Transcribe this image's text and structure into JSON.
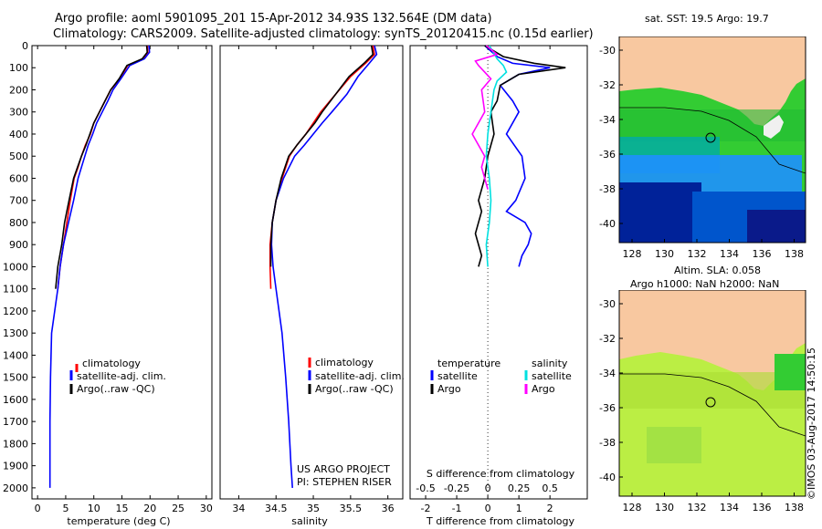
{
  "header": {
    "title_line1": "Argo profile: aoml 5901095_201 15-Apr-2012 34.93S 132.564E (DM data)",
    "title_line2": "Climatology: CARS2009. Satellite-adjusted climatology: synTS_20120415.nc (0.15d earlier)"
  },
  "colors": {
    "climatology": "#ff0000",
    "satellite": "#0000ff",
    "argo": "#000000",
    "sal_satellite": "#00e0e0",
    "sal_argo": "#ff00ff",
    "land": "#f8c8a0"
  },
  "chart_data": [
    {
      "type": "line",
      "xlabel": "temperature (deg C)",
      "ylabel": "",
      "xlim": [
        -1,
        31
      ],
      "ylim": [
        0,
        2050
      ],
      "y_reversed": true,
      "xticks": [
        0,
        5,
        10,
        15,
        20,
        25,
        30
      ],
      "yticks": [
        0,
        100,
        200,
        300,
        400,
        500,
        600,
        700,
        800,
        900,
        1000,
        1100,
        1200,
        1300,
        1400,
        1500,
        1600,
        1700,
        1800,
        1900,
        2000
      ],
      "legend": [
        "climatology",
        "satellite-adj. clim.",
        "Argo(..raw -QC)"
      ],
      "series": [
        {
          "name": "climatology",
          "x": [
            19.5,
            19.6,
            18.8,
            16,
            14.6,
            13,
            12,
            11,
            10,
            9.4,
            8.5,
            7.8,
            7.2,
            6.5,
            5.8,
            5.2,
            4.6,
            4,
            3.6
          ],
          "y": [
            0,
            30,
            60,
            90,
            150,
            200,
            250,
            300,
            350,
            400,
            450,
            500,
            550,
            600,
            700,
            800,
            900,
            1000,
            1100
          ]
        },
        {
          "name": "satellite-adj. clim.",
          "x": [
            19.8,
            19.9,
            19,
            16.4,
            14.8,
            13.4,
            12.5,
            11.5,
            10.5,
            9.8,
            9,
            8.4,
            7.8,
            7.2,
            6.4,
            5.5,
            4.6,
            4,
            3.6,
            2.5,
            2.3,
            2.2,
            2.2
          ],
          "y": [
            0,
            30,
            60,
            90,
            150,
            200,
            250,
            300,
            350,
            400,
            450,
            500,
            550,
            600,
            700,
            800,
            900,
            1000,
            1100,
            1300,
            1500,
            1700,
            2000
          ]
        },
        {
          "name": "Argo(..raw -QC)",
          "x": [
            19.4,
            19.5,
            18.6,
            15.9,
            14.5,
            13,
            12,
            11,
            10,
            9.3,
            8.6,
            7.8,
            7.1,
            6.4,
            5.6,
            4.8,
            4.3,
            3.6,
            3.2
          ],
          "y": [
            0,
            30,
            60,
            90,
            150,
            200,
            250,
            300,
            350,
            400,
            450,
            500,
            550,
            600,
            700,
            800,
            900,
            1000,
            1100
          ]
        }
      ]
    },
    {
      "type": "line",
      "xlabel": "salinity",
      "ylabel": "",
      "xlim": [
        33.75,
        36.2
      ],
      "ylim": [
        0,
        2050
      ],
      "y_reversed": true,
      "xticks": [
        34,
        34.5,
        35,
        35.5,
        36
      ],
      "xtick_labels": [
        "34",
        "34.5",
        "35",
        "35.5",
        "36"
      ],
      "legend": [
        "climatology",
        "satellite-adj. clim.",
        "Argo(..raw -QC)"
      ],
      "annotations": [
        "US ARGO PROJECT",
        "PI: STEPHEN RISER"
      ],
      "series": [
        {
          "name": "climatology",
          "x": [
            35.8,
            35.82,
            35.7,
            35.5,
            35.3,
            35.1,
            35.0,
            34.9,
            34.78,
            34.68,
            34.58,
            34.5,
            34.45,
            34.42,
            34.42,
            34.43
          ],
          "y": [
            0,
            40,
            80,
            140,
            220,
            300,
            350,
            400,
            450,
            500,
            600,
            700,
            800,
            900,
            1000,
            1100
          ]
        },
        {
          "name": "satellite-adj. clim.",
          "x": [
            35.82,
            35.85,
            35.75,
            35.6,
            35.45,
            35.25,
            35.12,
            35.0,
            34.88,
            34.75,
            34.6,
            34.5,
            34.45,
            34.44,
            34.46,
            34.5,
            34.58,
            34.63,
            34.67,
            34.7,
            34.72
          ],
          "y": [
            0,
            40,
            80,
            140,
            220,
            300,
            350,
            400,
            450,
            500,
            600,
            700,
            800,
            900,
            1000,
            1100,
            1300,
            1500,
            1700,
            1900,
            2000
          ]
        },
        {
          "name": "Argo(..raw -QC)",
          "x": [
            35.78,
            35.8,
            35.68,
            35.48,
            35.3,
            35.12,
            35.02,
            34.9,
            34.78,
            34.67,
            34.57,
            34.5,
            34.45,
            34.43,
            34.43
          ],
          "y": [
            0,
            40,
            80,
            140,
            220,
            300,
            350,
            400,
            450,
            500,
            600,
            700,
            800,
            900,
            1000
          ]
        }
      ]
    },
    {
      "type": "line",
      "xlabel": "T difference from climatology",
      "x2label": "S difference from climatology",
      "xlim": [
        -2.5,
        3.2
      ],
      "ylim": [
        0,
        2050
      ],
      "y_reversed": true,
      "xticks": [
        -2,
        -1,
        0,
        1,
        2
      ],
      "x2ticks": [
        -0.5,
        -0.25,
        0,
        0.25,
        0.5
      ],
      "x2tick_labels": [
        "-0.5",
        "-0.25",
        "0",
        "0.25",
        "0.5"
      ],
      "legend_groups": [
        {
          "title": "temperature",
          "items": [
            "satellite",
            "Argo"
          ]
        },
        {
          "title": "salinity",
          "items": [
            "satellite",
            "Argo"
          ]
        }
      ],
      "series": [
        {
          "name": "temperature satellite",
          "x": [
            -0.1,
            0.3,
            0.8,
            2.0,
            1.0,
            0.4,
            0.8,
            1.0,
            0.6,
            1.1,
            1.2,
            0.9,
            0.6,
            1.2,
            1.4,
            1.3,
            1.1,
            1.0
          ],
          "y": [
            0,
            50,
            80,
            100,
            130,
            180,
            250,
            300,
            400,
            500,
            600,
            700,
            750,
            800,
            850,
            900,
            950,
            1000
          ]
        },
        {
          "name": "temperature Argo",
          "x": [
            -0.1,
            0.5,
            1.5,
            2.5,
            1.0,
            0.4,
            0.3,
            0.1,
            0.2,
            0.0,
            -0.1,
            -0.3,
            -0.2,
            -0.4,
            -0.2,
            -0.3
          ],
          "y": [
            0,
            50,
            80,
            100,
            130,
            180,
            250,
            300,
            400,
            500,
            600,
            700,
            750,
            850,
            950,
            1000
          ]
        },
        {
          "name": "salinity satellite",
          "x": [
            0.05,
            0.3,
            0.5,
            0.6,
            0.3,
            0.2,
            0.1,
            0.0,
            -0.05,
            0.05,
            0.1,
            0.05,
            0.0,
            -0.05,
            0.0
          ],
          "y": [
            0,
            60,
            90,
            120,
            160,
            200,
            300,
            400,
            500,
            600,
            700,
            800,
            850,
            900,
            1000
          ]
        },
        {
          "name": "salinity Argo",
          "x": [
            -0.05,
            0.3,
            -0.4,
            -0.3,
            -0.1,
            0.1,
            -0.2,
            -0.1,
            -0.5,
            -0.3,
            -0.1,
            -0.2,
            -0.1,
            0.0
          ],
          "y": [
            0,
            40,
            70,
            90,
            120,
            150,
            200,
            300,
            400,
            450,
            500,
            550,
            600,
            650
          ]
        }
      ]
    }
  ],
  "maps": [
    {
      "title_lines": [
        "sat. SST: 19.5 Argo: 19.7"
      ],
      "xticks": [
        "128",
        "130",
        "132",
        "134",
        "136",
        "138"
      ],
      "yticks": [
        "-30",
        "-32",
        "-34",
        "-36",
        "-38",
        "-40"
      ]
    },
    {
      "title_lines": [
        "Altim. SLA: 0.058",
        "Argo h1000: NaN h2000: NaN"
      ],
      "xticks": [
        "128",
        "130",
        "132",
        "134",
        "136",
        "138"
      ],
      "yticks": [
        "-30",
        "-32",
        "-34",
        "-36",
        "-38",
        "-40"
      ]
    }
  ],
  "side_stamp": "©IMOS 03-Aug-2017 14:50:15"
}
